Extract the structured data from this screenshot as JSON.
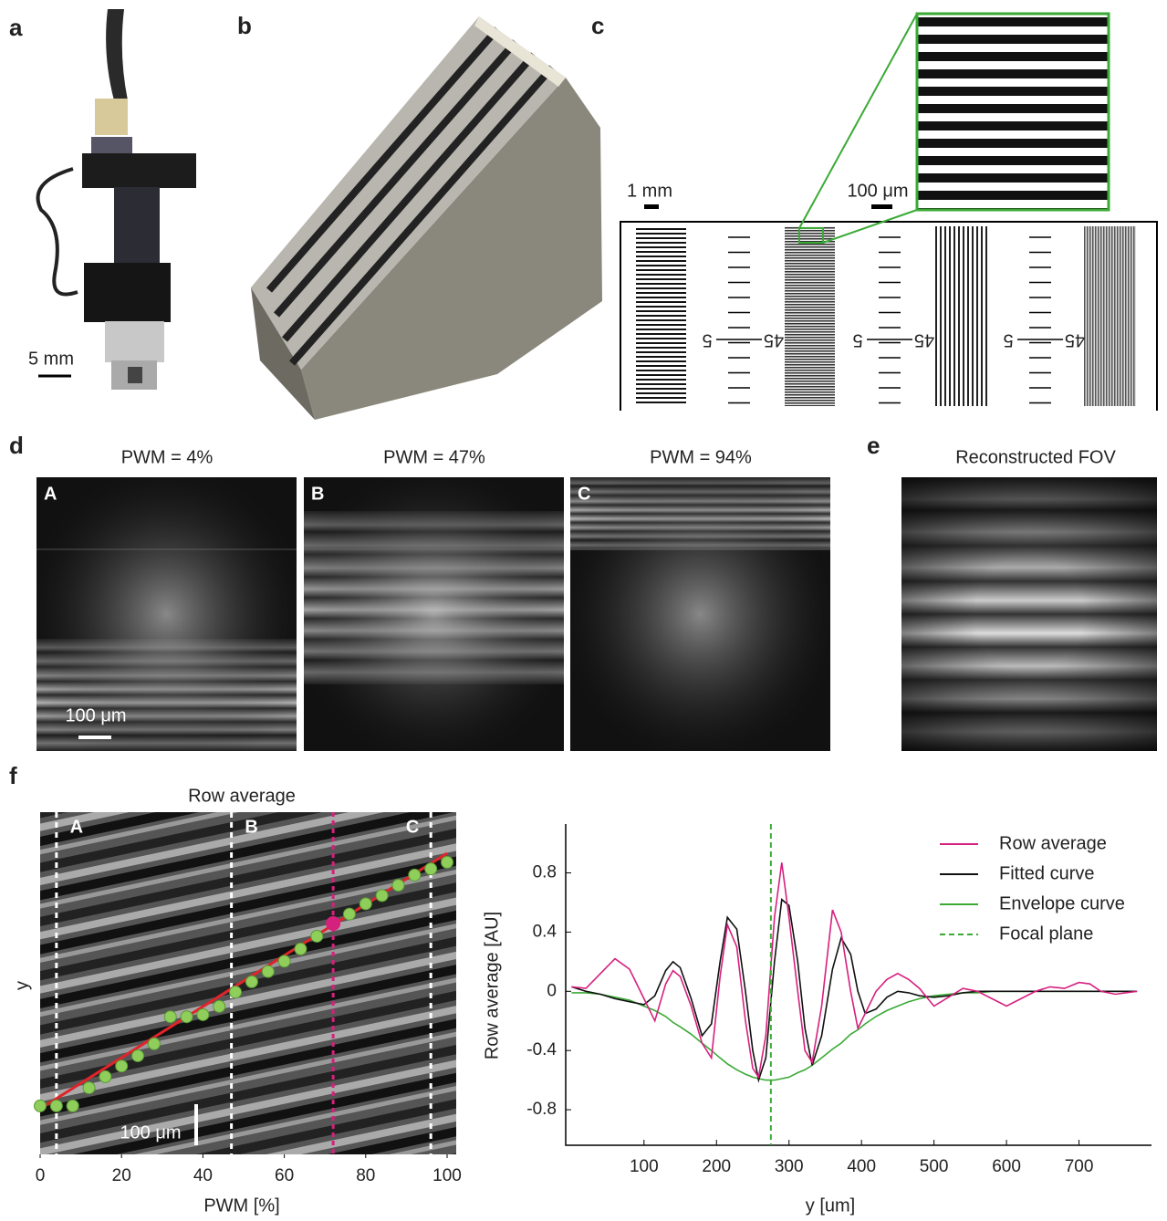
{
  "panels": {
    "a": {
      "letter": "a",
      "scale": "5 mm"
    },
    "b": {
      "letter": "b"
    },
    "c": {
      "letter": "c",
      "scale_left": "1 mm",
      "scale_right": "100 μm",
      "ruler_labels": [
        [
          "5",
          "45"
        ],
        [
          "5",
          "45"
        ],
        [
          "5",
          "45"
        ]
      ]
    },
    "d": {
      "letter": "d",
      "titles": [
        "PWM = 4%",
        "PWM = 47%",
        "PWM = 94%"
      ],
      "image_labels": [
        "A",
        "B",
        "C"
      ],
      "scale": "100 μm"
    },
    "e": {
      "letter": "e",
      "title": "Reconstructed FOV"
    },
    "f": {
      "letter": "f"
    }
  },
  "chart_data": [
    {
      "type": "scatter",
      "title": "Row average",
      "xlabel": "PWM [%]",
      "ylabel": "y",
      "xlim": [
        0,
        100
      ],
      "xticks": [
        0,
        20,
        40,
        60,
        80,
        100
      ],
      "ylim": [
        0,
        833
      ],
      "x": [
        0,
        4,
        8,
        12,
        16,
        20,
        24,
        28,
        32,
        36,
        40,
        44,
        48,
        52,
        56,
        60,
        64,
        68,
        72,
        76,
        80,
        84,
        88,
        92,
        96,
        100
      ],
      "series": [
        {
          "color": "#8fce5a",
          "values": [
            118,
            118,
            118,
            162,
            189,
            215,
            240,
            269,
            335,
            335,
            340,
            360,
            395,
            420,
            445,
            470,
            500,
            531,
            562,
            585,
            610,
            630,
            655,
            680,
            695,
            711
          ]
        }
      ],
      "fit": {
        "color": "#e0242a",
        "x": [
          0,
          100
        ],
        "values": [
          111,
          733
        ]
      },
      "highlight": {
        "color": "#d6207e",
        "x": 72,
        "value": 562
      },
      "markers": [
        {
          "label": "A",
          "x": 4
        },
        {
          "label": "B",
          "x": 47
        },
        {
          "label": "C",
          "x": 96
        }
      ],
      "scale_bar": "100 μm"
    },
    {
      "type": "line",
      "xlabel": "y [um]",
      "ylabel": "Row average [AU]",
      "xlim": [
        -8,
        800
      ],
      "xticks": [
        100,
        200,
        300,
        400,
        500,
        600,
        700
      ],
      "ylim": [
        -1.04,
        1.13
      ],
      "yticks": [
        -0.8,
        -0.4,
        0,
        0.4,
        0.8
      ],
      "x": [
        0,
        20,
        40,
        60,
        80,
        100,
        115,
        130,
        140,
        150,
        165,
        180,
        193,
        205,
        215,
        228,
        240,
        250,
        258,
        268,
        280,
        290,
        300,
        312,
        322,
        332,
        345,
        360,
        372,
        385,
        395,
        405,
        420,
        435,
        450,
        465,
        480,
        500,
        520,
        540,
        560,
        580,
        600,
        620,
        640,
        660,
        680,
        700,
        715,
        730,
        750,
        780
      ],
      "series": [
        {
          "name": "Row average",
          "color": "#d6207e",
          "values": [
            0.03,
            0.02,
            0.12,
            0.22,
            0.15,
            -0.05,
            -0.2,
            0.05,
            0.14,
            0.1,
            -0.1,
            -0.35,
            -0.45,
            0.1,
            0.45,
            0.3,
            -0.2,
            -0.52,
            -0.58,
            -0.3,
            0.5,
            0.87,
            0.5,
            0.0,
            -0.4,
            -0.48,
            -0.1,
            0.55,
            0.4,
            0.0,
            -0.25,
            -0.15,
            0.0,
            0.08,
            0.12,
            0.08,
            0.02,
            -0.1,
            -0.04,
            0.02,
            0.0,
            -0.05,
            -0.1,
            -0.05,
            0.0,
            0.03,
            0.02,
            0.06,
            0.05,
            0.0,
            -0.02,
            0.0
          ]
        },
        {
          "name": "Fitted curve",
          "color": "#111111",
          "values": [
            0.03,
            0.0,
            -0.02,
            -0.05,
            -0.07,
            -0.09,
            -0.03,
            0.14,
            0.2,
            0.16,
            -0.05,
            -0.3,
            -0.22,
            0.2,
            0.5,
            0.42,
            0.0,
            -0.4,
            -0.6,
            -0.45,
            0.2,
            0.62,
            0.58,
            0.2,
            -0.25,
            -0.5,
            -0.3,
            0.15,
            0.36,
            0.25,
            0.0,
            -0.15,
            -0.12,
            -0.04,
            0.0,
            -0.01,
            -0.03,
            -0.04,
            -0.03,
            -0.01,
            0,
            0,
            0,
            0,
            0,
            0,
            0,
            0,
            0,
            0,
            0,
            0
          ]
        },
        {
          "name": "Envelope curve",
          "color": "#3aaa35",
          "values": [
            -0.01,
            -0.01,
            -0.02,
            -0.04,
            -0.06,
            -0.1,
            -0.13,
            -0.17,
            -0.21,
            -0.24,
            -0.29,
            -0.35,
            -0.4,
            -0.45,
            -0.49,
            -0.53,
            -0.56,
            -0.58,
            -0.59,
            -0.6,
            -0.6,
            -0.59,
            -0.58,
            -0.55,
            -0.53,
            -0.5,
            -0.45,
            -0.39,
            -0.35,
            -0.29,
            -0.26,
            -0.22,
            -0.17,
            -0.13,
            -0.1,
            -0.07,
            -0.05,
            -0.03,
            -0.02,
            -0.01,
            -0.01,
            0,
            0,
            0,
            0,
            0,
            0,
            0,
            0,
            0,
            0,
            0
          ]
        }
      ],
      "focal_plane": {
        "name": "Focal plane",
        "color": "#3aaa35",
        "x": 275
      },
      "legend": "upper right"
    }
  ]
}
